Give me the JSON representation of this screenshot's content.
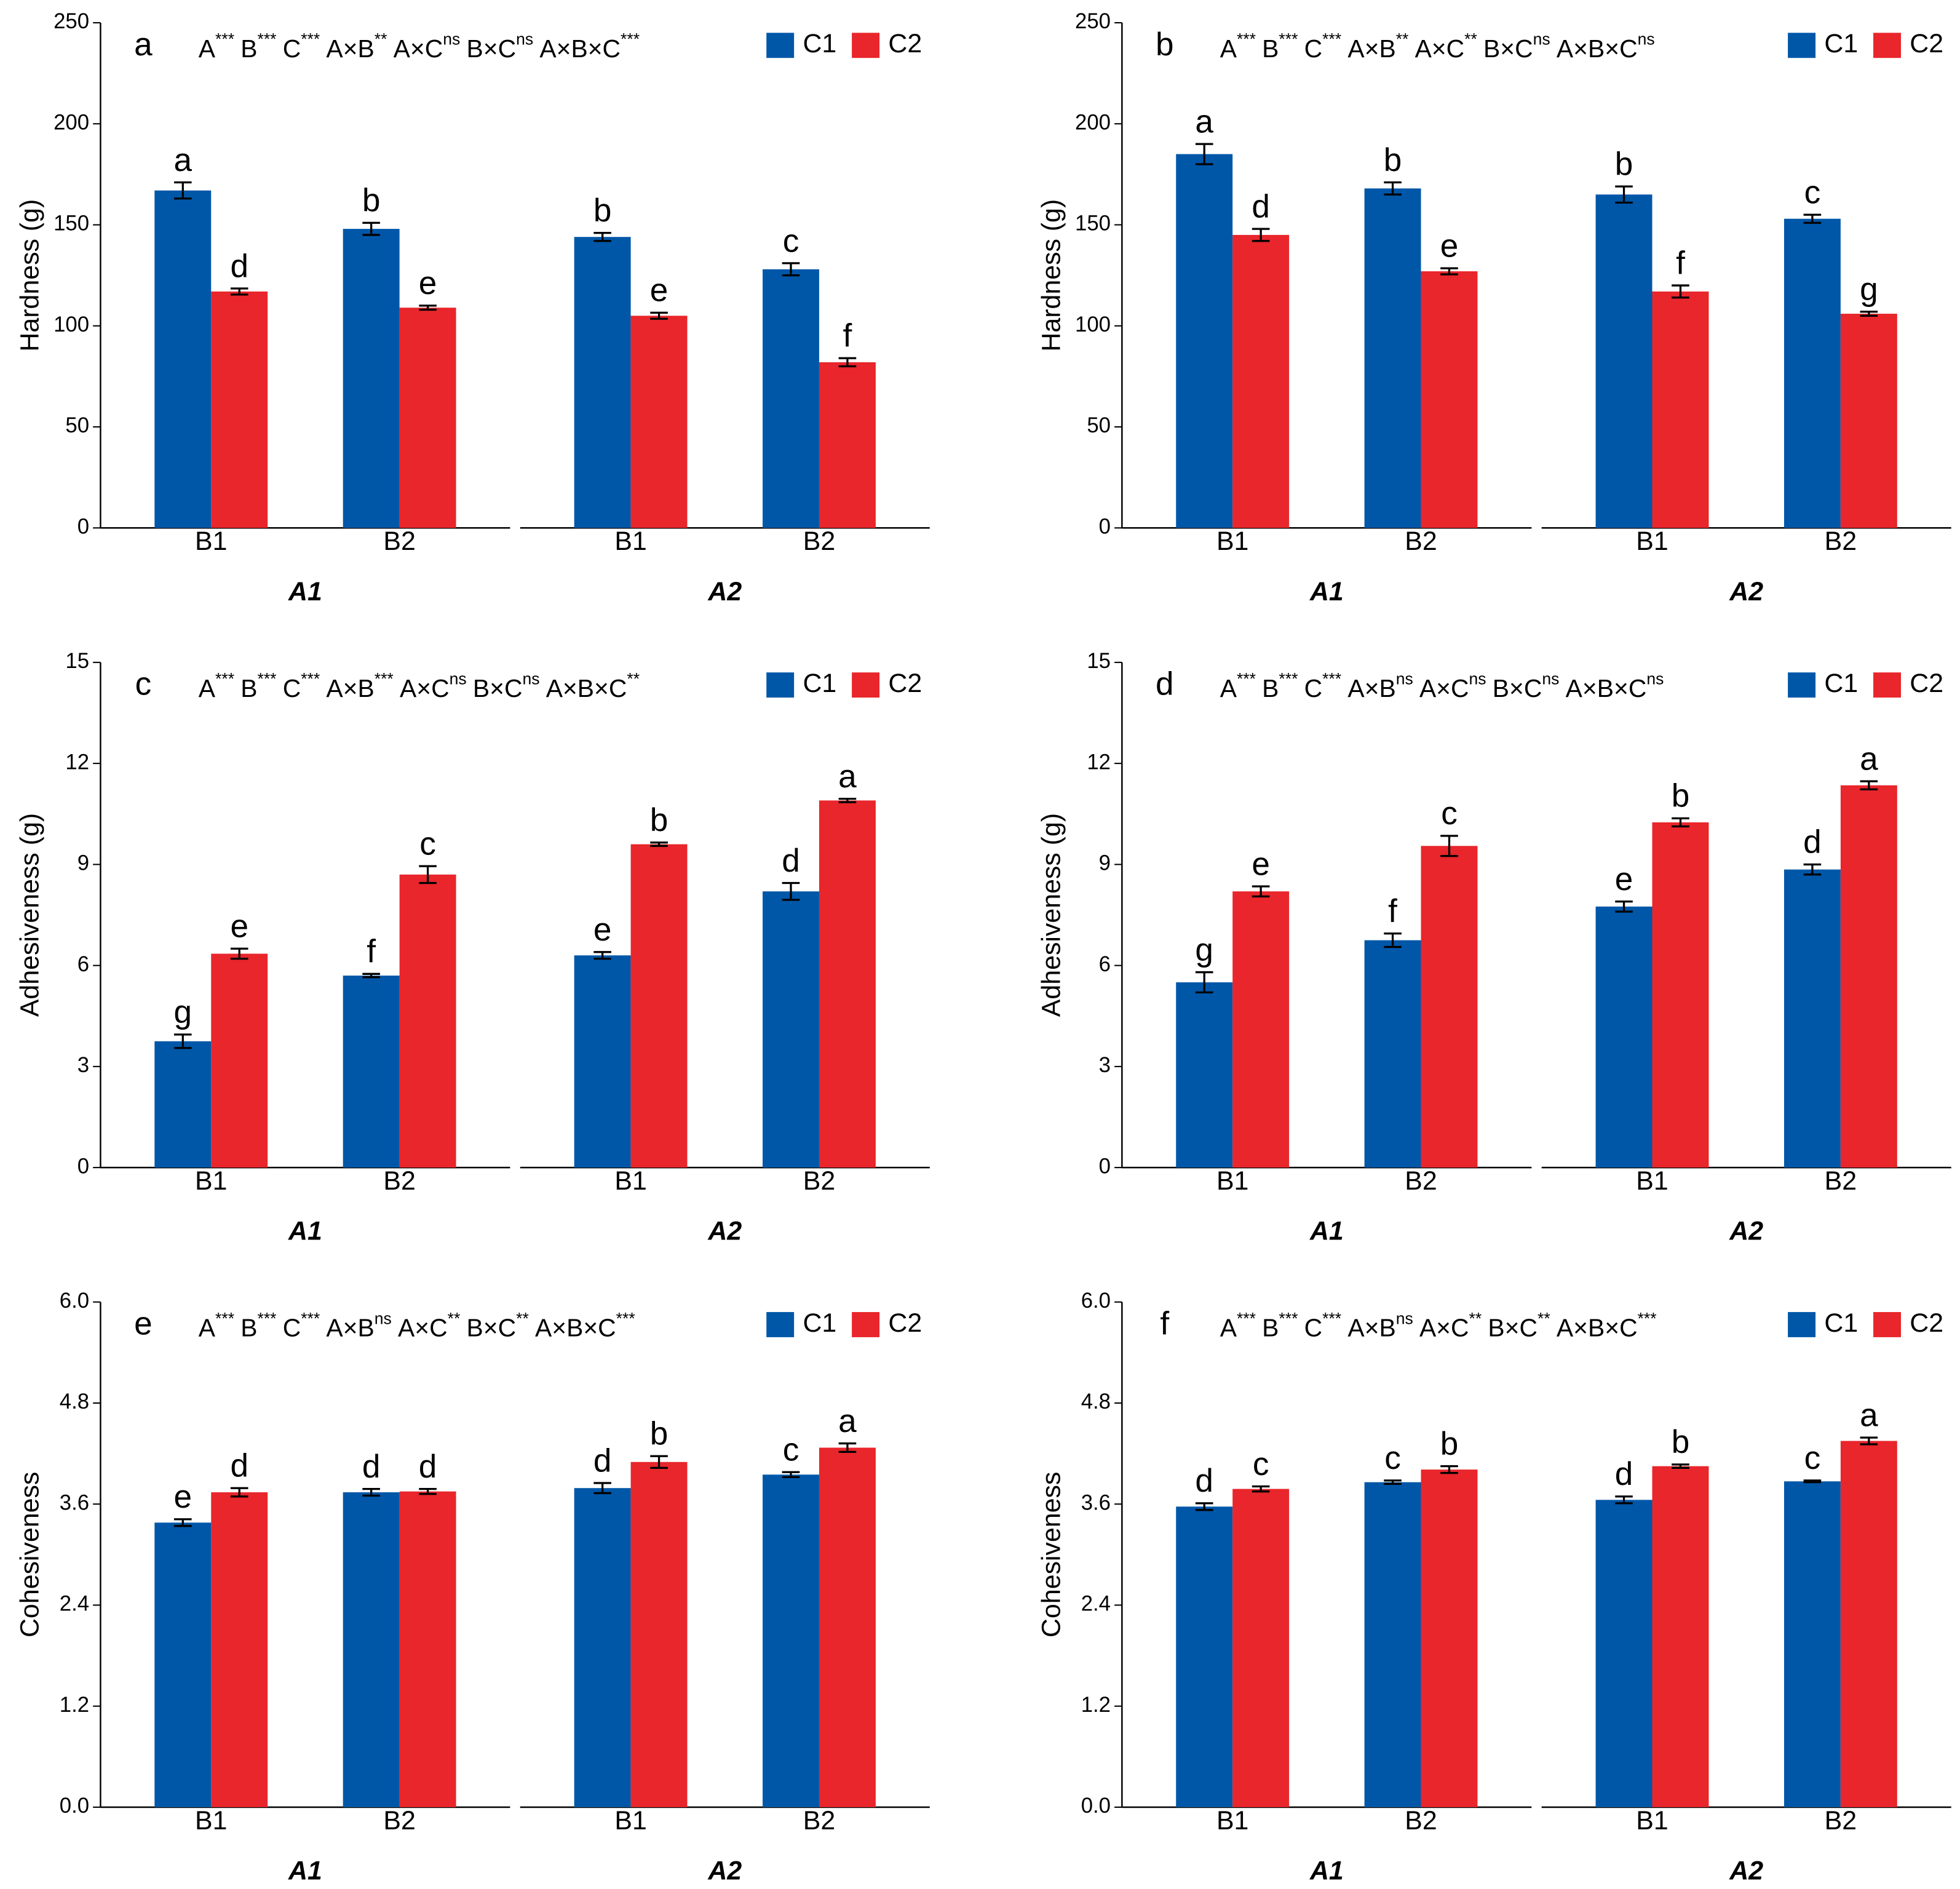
{
  "chart_data": [
    {
      "type": "bar",
      "label": "a",
      "ylabel": "Hardness (g)",
      "ylim": [
        0,
        250
      ],
      "yticks": [
        0,
        50,
        100,
        150,
        200,
        250
      ],
      "legend": "top-right",
      "effects": [
        {
          "term": "A",
          "sig": "***"
        },
        {
          "term": "B",
          "sig": "***"
        },
        {
          "term": "C",
          "sig": "***"
        },
        {
          "term": "A×B",
          "sig": "**"
        },
        {
          "term": "A×C",
          "sig": "ns"
        },
        {
          "term": "B×C",
          "sig": "ns"
        },
        {
          "term": "A×B×C",
          "sig": "***"
        }
      ],
      "facets": [
        "A1",
        "A2"
      ],
      "categories": [
        "B1",
        "B2",
        "B1",
        "B2"
      ],
      "series": [
        {
          "name": "C1",
          "color": "#0057a8",
          "values": [
            167,
            148,
            144,
            128
          ],
          "errors": [
            4,
            3,
            2,
            3
          ],
          "letters": [
            "a",
            "b",
            "b",
            "c"
          ]
        },
        {
          "name": "C2",
          "color": "#e8262b",
          "values": [
            117,
            109,
            105,
            82
          ],
          "errors": [
            1.5,
            1,
            1.5,
            2
          ],
          "letters": [
            "d",
            "e",
            "e",
            "f"
          ]
        }
      ]
    },
    {
      "type": "bar",
      "label": "b",
      "ylabel": "Hardness (g)",
      "ylim": [
        0,
        250
      ],
      "yticks": [
        0,
        50,
        100,
        150,
        200,
        250
      ],
      "legend": "top-right",
      "effects": [
        {
          "term": "A",
          "sig": "***"
        },
        {
          "term": "B",
          "sig": "***"
        },
        {
          "term": "C",
          "sig": "***"
        },
        {
          "term": "A×B",
          "sig": "**"
        },
        {
          "term": "A×C",
          "sig": "**"
        },
        {
          "term": "B×C",
          "sig": "ns"
        },
        {
          "term": "A×B×C",
          "sig": "ns"
        }
      ],
      "facets": [
        "A1",
        "A2"
      ],
      "categories": [
        "B1",
        "B2",
        "B1",
        "B2"
      ],
      "series": [
        {
          "name": "C1",
          "color": "#0057a8",
          "values": [
            185,
            168,
            165,
            153
          ],
          "errors": [
            5,
            3,
            4,
            2
          ],
          "letters": [
            "a",
            "b",
            "b",
            "c"
          ]
        },
        {
          "name": "C2",
          "color": "#e8262b",
          "values": [
            145,
            127,
            117,
            106
          ],
          "errors": [
            3,
            1.5,
            3,
            1
          ],
          "letters": [
            "d",
            "e",
            "f",
            "g"
          ]
        }
      ]
    },
    {
      "type": "bar",
      "label": "c",
      "ylabel": "Adhesiveness (g)",
      "ylim": [
        0,
        15
      ],
      "yticks": [
        0,
        3,
        6,
        9,
        12,
        15
      ],
      "legend": "top-right",
      "effects": [
        {
          "term": "A",
          "sig": "***"
        },
        {
          "term": "B",
          "sig": "***"
        },
        {
          "term": "C",
          "sig": "***"
        },
        {
          "term": "A×B",
          "sig": "***"
        },
        {
          "term": "A×C",
          "sig": "ns"
        },
        {
          "term": "B×C",
          "sig": "ns"
        },
        {
          "term": "A×B×C",
          "sig": "**"
        }
      ],
      "facets": [
        "A1",
        "A2"
      ],
      "categories": [
        "B1",
        "B2",
        "B1",
        "B2"
      ],
      "series": [
        {
          "name": "C1",
          "color": "#0057a8",
          "values": [
            3.75,
            5.7,
            6.3,
            8.2
          ],
          "errors": [
            0.2,
            0.05,
            0.1,
            0.25
          ],
          "letters": [
            "g",
            "f",
            "e",
            "d"
          ]
        },
        {
          "name": "C2",
          "color": "#e8262b",
          "values": [
            6.35,
            8.7,
            9.6,
            10.9
          ],
          "errors": [
            0.15,
            0.25,
            0.05,
            0.05
          ],
          "letters": [
            "e",
            "c",
            "b",
            "a"
          ]
        }
      ]
    },
    {
      "type": "bar",
      "label": "d",
      "ylabel": "Adhesiveness (g)",
      "ylim": [
        0,
        15
      ],
      "yticks": [
        0,
        3,
        6,
        9,
        12,
        15
      ],
      "legend": "top-right",
      "effects": [
        {
          "term": "A",
          "sig": "***"
        },
        {
          "term": "B",
          "sig": "***"
        },
        {
          "term": "C",
          "sig": "***"
        },
        {
          "term": "A×B",
          "sig": "ns"
        },
        {
          "term": "A×C",
          "sig": "ns"
        },
        {
          "term": "B×C",
          "sig": "ns"
        },
        {
          "term": "A×B×C",
          "sig": "ns"
        }
      ],
      "facets": [
        "A1",
        "A2"
      ],
      "categories": [
        "B1",
        "B2",
        "B1",
        "B2"
      ],
      "series": [
        {
          "name": "C1",
          "color": "#0057a8",
          "values": [
            5.5,
            6.75,
            7.75,
            8.85
          ],
          "errors": [
            0.3,
            0.2,
            0.15,
            0.15
          ],
          "letters": [
            "g",
            "f",
            "e",
            "d"
          ]
        },
        {
          "name": "C2",
          "color": "#e8262b",
          "values": [
            8.2,
            9.55,
            10.25,
            11.35
          ],
          "errors": [
            0.15,
            0.3,
            0.12,
            0.12
          ],
          "letters": [
            "e",
            "c",
            "b",
            "a"
          ]
        }
      ]
    },
    {
      "type": "bar",
      "label": "e",
      "ylabel": "Cohesiveness",
      "ylim": [
        0,
        6
      ],
      "yticks": [
        {
          "value": 0,
          "label": "0.0"
        },
        1.2,
        2.4,
        3.6,
        4.8,
        {
          "value": 6,
          "label": "6.0"
        }
      ],
      "legend": "top-right",
      "effects": [
        {
          "term": "A",
          "sig": "***"
        },
        {
          "term": "B",
          "sig": "***"
        },
        {
          "term": "C",
          "sig": "***"
        },
        {
          "term": "A×B",
          "sig": "ns"
        },
        {
          "term": "A×C",
          "sig": "**"
        },
        {
          "term": "B×C",
          "sig": "**"
        },
        {
          "term": "A×B×C",
          "sig": "***"
        }
      ],
      "facets": [
        "A1",
        "A2"
      ],
      "categories": [
        "B1",
        "B2",
        "B1",
        "B2"
      ],
      "series": [
        {
          "name": "C1",
          "color": "#0057a8",
          "values": [
            3.38,
            3.74,
            3.79,
            3.95
          ],
          "errors": [
            0.04,
            0.04,
            0.06,
            0.03
          ],
          "letters": [
            "e",
            "d",
            "d",
            "c"
          ]
        },
        {
          "name": "C2",
          "color": "#e8262b",
          "values": [
            3.74,
            3.75,
            4.1,
            4.27
          ],
          "errors": [
            0.05,
            0.03,
            0.07,
            0.05
          ],
          "letters": [
            "d",
            "d",
            "b",
            "a"
          ]
        }
      ]
    },
    {
      "type": "bar",
      "label": "f",
      "ylabel": "Cohesiveness",
      "ylim": [
        0,
        6
      ],
      "yticks": [
        {
          "value": 0,
          "label": "0.0"
        },
        1.2,
        2.4,
        3.6,
        4.8,
        {
          "value": 6,
          "label": "6.0"
        }
      ],
      "legend": "top-right",
      "effects": [
        {
          "term": "A",
          "sig": "***"
        },
        {
          "term": "B",
          "sig": "***"
        },
        {
          "term": "C",
          "sig": "***"
        },
        {
          "term": "A×B",
          "sig": "ns"
        },
        {
          "term": "A×C",
          "sig": "**"
        },
        {
          "term": "B×C",
          "sig": "**"
        },
        {
          "term": "A×B×C",
          "sig": "***"
        }
      ],
      "facets": [
        "A1",
        "A2"
      ],
      "categories": [
        "B1",
        "B2",
        "B1",
        "B2"
      ],
      "series": [
        {
          "name": "C1",
          "color": "#0057a8",
          "values": [
            3.57,
            3.86,
            3.65,
            3.87
          ],
          "errors": [
            0.04,
            0.02,
            0.04,
            0.01
          ],
          "letters": [
            "d",
            "c",
            "d",
            "c"
          ]
        },
        {
          "name": "C2",
          "color": "#e8262b",
          "values": [
            3.78,
            4.01,
            4.05,
            4.35
          ],
          "errors": [
            0.03,
            0.04,
            0.02,
            0.04
          ],
          "letters": [
            "c",
            "b",
            "b",
            "a"
          ]
        }
      ]
    }
  ]
}
